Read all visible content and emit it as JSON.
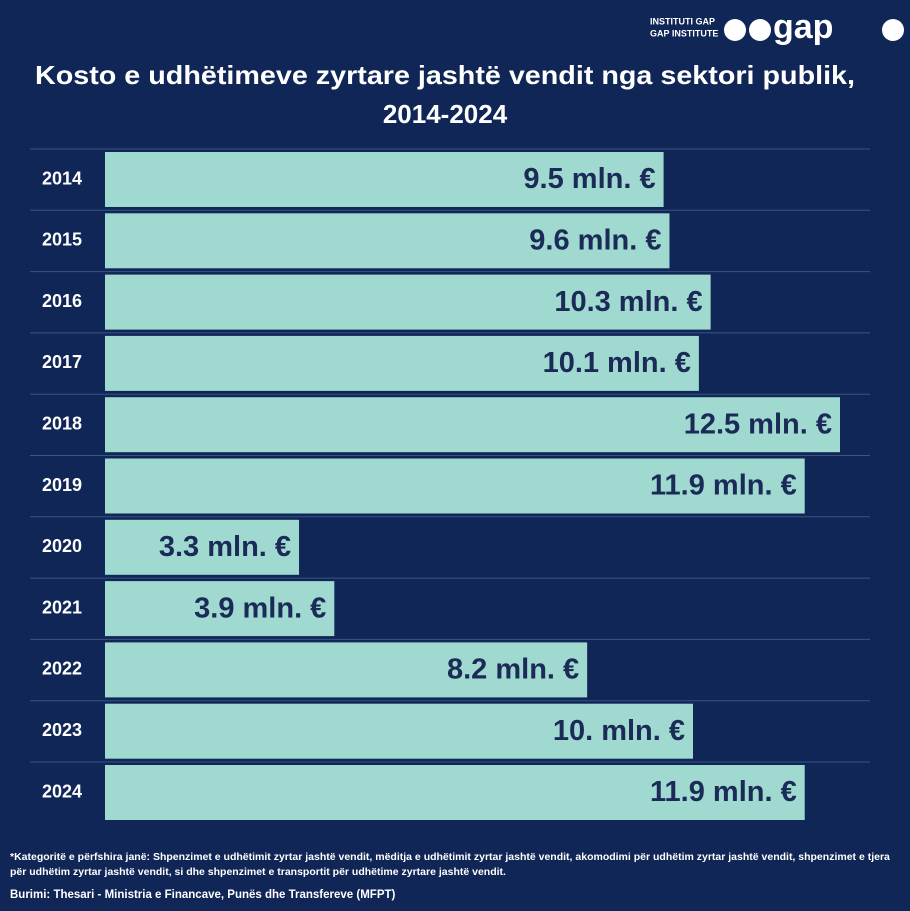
{
  "chart_data": {
    "type": "bar",
    "title_lines": [
      "Kosto e udhëtimeve zyrtare jashtë vendit nga sektori publik,",
      "2014-2024"
    ],
    "logo": {
      "line1": "INSTITUTI GAP",
      "line2": "GAP INSTITUTE",
      "brand": "gap"
    },
    "categories": [
      "2014",
      "2015",
      "2016",
      "2017",
      "2018",
      "2019",
      "2020",
      "2021",
      "2022",
      "2023",
      "2024"
    ],
    "values": [
      9.5,
      9.6,
      10.3,
      10.1,
      12.5,
      11.9,
      3.3,
      3.9,
      8.2,
      10,
      11.9
    ],
    "value_labels": [
      "9.5 mln. €",
      "9.6 mln. €",
      "10.3 mln. €",
      "10.1 mln. €",
      "12.5 mln. €",
      "11.9 mln. €",
      "3.3 mln. €",
      "3.9 mln. €",
      "8.2 mln. €",
      "10. mln. €",
      "11.9 mln. €"
    ],
    "color": "#9fd9d0",
    "orientation": "horizontal",
    "footnote": "*Kategoritë e përfshira janë: Shpenzimet e udhëtimit zyrtar jashtë vendit, mëditja e udhëtimit zyrtar jashtë vendit, akomodimi për udhëtim zyrtar jashtë vendit, shpenzimet e tjera për udhëtim zyrtar jashtë vendit, si dhe shpenzimet e transportit për udhëtime zyrtare jashtë vendit.",
    "source": "Burimi: Thesari - Ministria e Financave, Punës dhe Transfereve (MFPT)"
  }
}
